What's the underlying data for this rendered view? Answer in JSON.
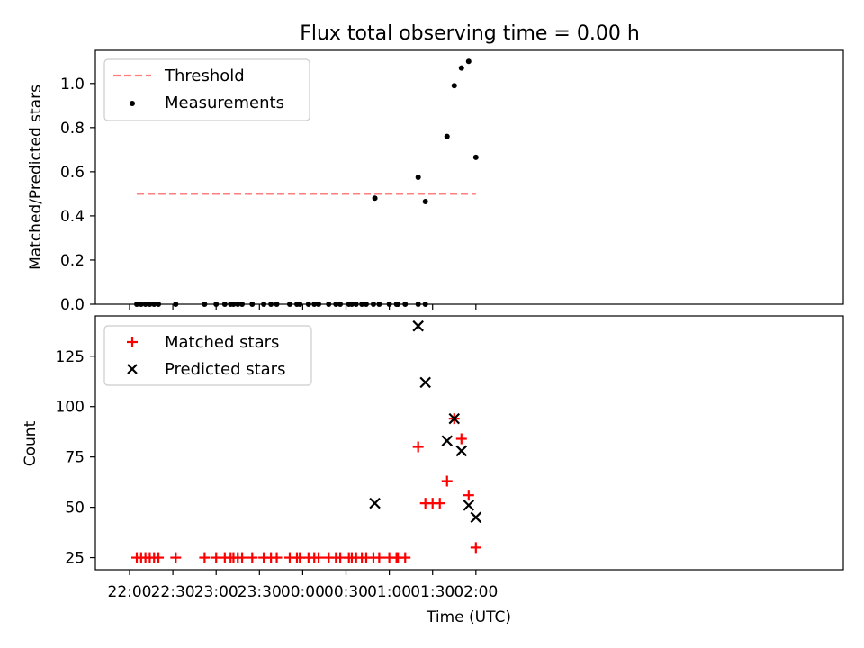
{
  "title": "Flux total observing time = 0.00 h",
  "colors": {
    "threshold": "#ff7f7f",
    "measurement": "#000000",
    "matched": "#ff0000",
    "predicted": "#000000"
  },
  "chart_data": [
    {
      "type": "scatter",
      "ylabel": "Matched/Predicted stars",
      "ylim": [
        0,
        1.15
      ],
      "yticks": [
        "0.0",
        "0.2",
        "0.4",
        "0.6",
        "0.8",
        "1.0"
      ],
      "legend": {
        "placement": "top-left",
        "entries": [
          "Threshold",
          "Measurements"
        ]
      },
      "threshold": {
        "name": "Threshold",
        "value": 0.5,
        "x_start": "22:05",
        "x_end": "02:00",
        "style": "dashed"
      },
      "series": [
        {
          "name": "Measurements",
          "points": [
            [
              "22:05",
              0
            ],
            [
              "22:08",
              0
            ],
            [
              "22:11",
              0
            ],
            [
              "22:14",
              0
            ],
            [
              "22:17",
              0
            ],
            [
              "22:20",
              0
            ],
            [
              "22:32",
              0
            ],
            [
              "22:52",
              0
            ],
            [
              "23:00",
              0
            ],
            [
              "23:06",
              0
            ],
            [
              "23:10",
              0
            ],
            [
              "23:12",
              0
            ],
            [
              "23:15",
              0
            ],
            [
              "23:18",
              0
            ],
            [
              "23:25",
              0
            ],
            [
              "23:33",
              0
            ],
            [
              "23:38",
              0
            ],
            [
              "23:42",
              0
            ],
            [
              "23:51",
              0
            ],
            [
              "23:56",
              0
            ],
            [
              "23:58",
              0
            ],
            [
              "00:04",
              0
            ],
            [
              "00:08",
              0
            ],
            [
              "00:11",
              0
            ],
            [
              "00:18",
              0
            ],
            [
              "00:23",
              0
            ],
            [
              "00:26",
              0
            ],
            [
              "00:32",
              0
            ],
            [
              "00:34",
              0
            ],
            [
              "00:37",
              0
            ],
            [
              "00:41",
              0
            ],
            [
              "00:44",
              0
            ],
            [
              "00:49",
              0
            ],
            [
              "00:53",
              0
            ],
            [
              "01:00",
              0
            ],
            [
              "01:05",
              0
            ],
            [
              "01:06",
              0
            ],
            [
              "01:11",
              0
            ],
            [
              "01:20",
              0
            ],
            [
              "01:25",
              0
            ],
            [
              "00:50",
              0.48
            ],
            [
              "01:20",
              0.575
            ],
            [
              "01:25",
              0.465
            ],
            [
              "01:40",
              0.76
            ],
            [
              "01:45",
              0.99
            ],
            [
              "01:50",
              1.07
            ],
            [
              "01:55",
              1.1
            ],
            [
              "02:00",
              0.665
            ]
          ]
        }
      ]
    },
    {
      "type": "scatter",
      "xlabel": "Time (UTC)",
      "ylabel": "Count",
      "ylim": [
        19,
        145
      ],
      "yticks": [
        "25",
        "50",
        "75",
        "100",
        "125"
      ],
      "xticks": [
        "22:00",
        "22:30",
        "23:00",
        "23:30",
        "00:00",
        "00:30",
        "01:00",
        "01:30",
        "02:00"
      ],
      "legend": {
        "placement": "top-left",
        "entries": [
          "Matched stars",
          "Predicted stars"
        ]
      },
      "series": [
        {
          "name": "Matched stars",
          "marker": "+",
          "points": [
            [
              "22:05",
              25
            ],
            [
              "22:08",
              25
            ],
            [
              "22:11",
              25
            ],
            [
              "22:14",
              25
            ],
            [
              "22:17",
              25
            ],
            [
              "22:20",
              25
            ],
            [
              "22:32",
              25
            ],
            [
              "22:52",
              25
            ],
            [
              "23:00",
              25
            ],
            [
              "23:06",
              25
            ],
            [
              "23:10",
              25
            ],
            [
              "23:12",
              25
            ],
            [
              "23:15",
              25
            ],
            [
              "23:18",
              25
            ],
            [
              "23:25",
              25
            ],
            [
              "23:33",
              25
            ],
            [
              "23:38",
              25
            ],
            [
              "23:42",
              25
            ],
            [
              "23:51",
              25
            ],
            [
              "23:56",
              25
            ],
            [
              "23:58",
              25
            ],
            [
              "00:04",
              25
            ],
            [
              "00:08",
              25
            ],
            [
              "00:11",
              25
            ],
            [
              "00:18",
              25
            ],
            [
              "00:23",
              25
            ],
            [
              "00:26",
              25
            ],
            [
              "00:32",
              25
            ],
            [
              "00:34",
              25
            ],
            [
              "00:37",
              25
            ],
            [
              "00:41",
              25
            ],
            [
              "00:44",
              25
            ],
            [
              "00:49",
              25
            ],
            [
              "00:53",
              25
            ],
            [
              "01:00",
              25
            ],
            [
              "01:05",
              25
            ],
            [
              "01:06",
              25
            ],
            [
              "01:11",
              25
            ],
            [
              "01:20",
              80
            ],
            [
              "01:25",
              52
            ],
            [
              "01:30",
              52
            ],
            [
              "01:35",
              52
            ],
            [
              "01:40",
              63
            ],
            [
              "01:45",
              94
            ],
            [
              "01:50",
              84
            ],
            [
              "01:55",
              56
            ],
            [
              "02:00",
              30
            ]
          ]
        },
        {
          "name": "Predicted stars",
          "marker": "x",
          "points": [
            [
              "00:50",
              52
            ],
            [
              "01:20",
              140
            ],
            [
              "01:25",
              112
            ],
            [
              "01:40",
              83
            ],
            [
              "01:45",
              94
            ],
            [
              "01:50",
              78
            ],
            [
              "01:55",
              51
            ],
            [
              "02:00",
              45
            ]
          ]
        }
      ]
    }
  ]
}
